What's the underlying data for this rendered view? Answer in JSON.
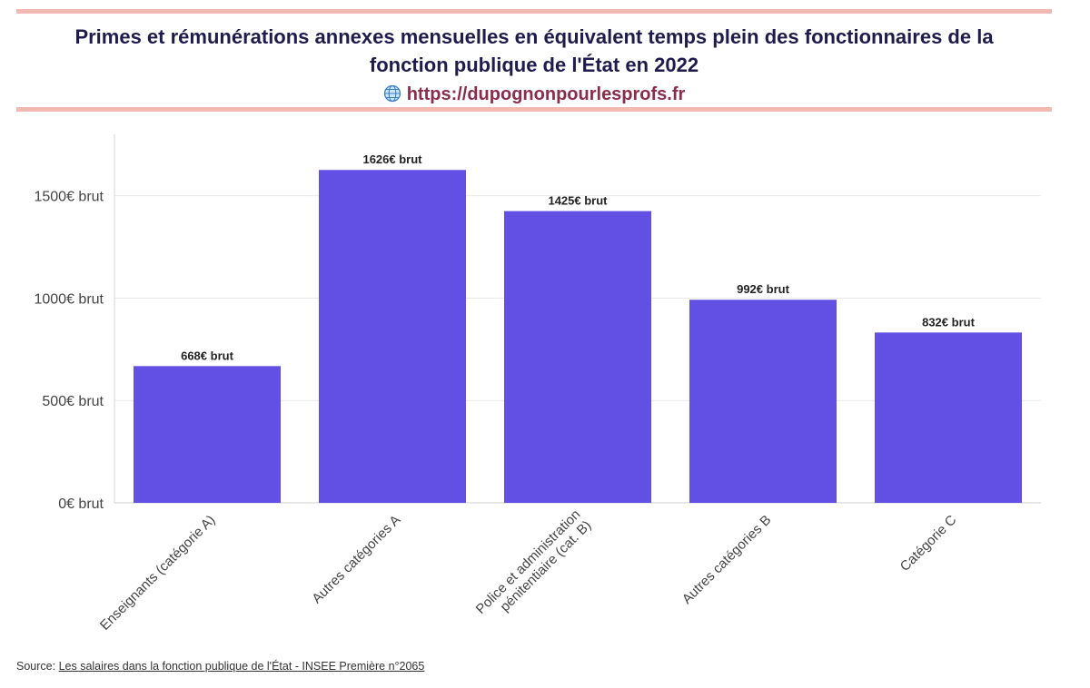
{
  "header": {
    "title": "Primes et rémunérations annexes mensuelles en équivalent temps plein des fonctionnaires de la fonction publique de l'État en 2022",
    "link": "https://dupognonpourlesprofs.fr",
    "link_icon": "globe-icon"
  },
  "footer": {
    "source_label": "Source:",
    "source_link": "Les salaires dans la fonction publique de l'État - INSEE Première n°2065"
  },
  "colors": {
    "bar": "#6150e3",
    "rule": "#f2b8b2",
    "title": "#1f1b4d",
    "link": "#8a2c4a"
  },
  "chart_data": {
    "type": "bar",
    "categories": [
      [
        "Enseignants (catégorie A)"
      ],
      [
        "Autres catégories A"
      ],
      [
        "Police et administration",
        "pénitentiaire (cat. B)"
      ],
      [
        "Autres catégories B"
      ],
      [
        "Catégorie C"
      ]
    ],
    "values": [
      668,
      1626,
      1425,
      992,
      832
    ],
    "value_labels": [
      "668€ brut",
      "1626€ brut",
      "1425€ brut",
      "992€ brut",
      "832€ brut"
    ],
    "yticks": [
      0,
      500,
      1000,
      1500
    ],
    "ytick_labels": [
      "0€ brut",
      "500€ brut",
      "1000€ brut",
      "1500€ brut"
    ],
    "ylim": [
      0,
      1800
    ],
    "grid": true,
    "legend": "none"
  }
}
